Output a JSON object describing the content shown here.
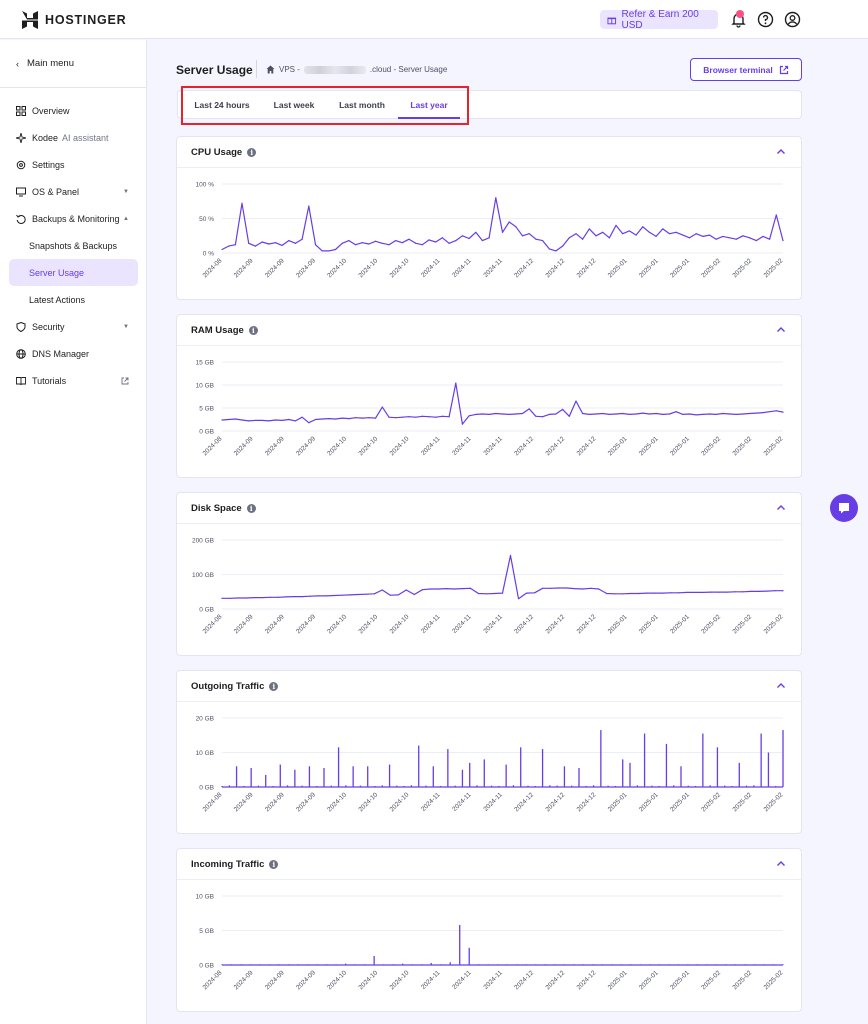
{
  "brand": {
    "name": "HOSTINGER",
    "accent": "#673de6"
  },
  "topbar": {
    "refer_label": "Refer & Earn 200 USD",
    "icons": [
      "gift-icon",
      "bell-icon",
      "help-icon",
      "account-icon"
    ]
  },
  "sidebar": {
    "main_menu": "Main menu",
    "items": [
      {
        "label": "Overview",
        "icon": "grid-icon"
      },
      {
        "label": "Kodee",
        "sub": "AI assistant",
        "icon": "sparkle-icon"
      },
      {
        "label": "Settings",
        "icon": "gear-icon"
      },
      {
        "label": "OS & Panel",
        "icon": "monitor-icon",
        "caret": "down"
      },
      {
        "label": "Backups & Monitoring",
        "icon": "backup-icon",
        "caret": "up"
      },
      {
        "label": "Snapshots & Backups"
      },
      {
        "label": "Server Usage",
        "active": true
      },
      {
        "label": "Latest Actions"
      },
      {
        "label": "Security",
        "icon": "shield-icon",
        "caret": "down"
      },
      {
        "label": "DNS Manager",
        "icon": "globe-icon"
      },
      {
        "label": "Tutorials",
        "icon": "book-icon",
        "external": true
      }
    ]
  },
  "header": {
    "title": "Server Usage",
    "breadcrumb": {
      "vps": "VPS -",
      "suffix": ".cloud - Server Usage"
    },
    "terminal_label": "Browser terminal"
  },
  "tabs": [
    {
      "label": "Last 24 hours"
    },
    {
      "label": "Last week"
    },
    {
      "label": "Last month"
    },
    {
      "label": "Last year",
      "active": true
    }
  ],
  "x_ticks": [
    "2024-08",
    "2024-09",
    "2024-09",
    "2024-09",
    "2024-10",
    "2024-10",
    "2024-10",
    "2024-11",
    "2024-11",
    "2024-11",
    "2024-12",
    "2024-12",
    "2024-12",
    "2025-01",
    "2025-01",
    "2025-01",
    "2025-02",
    "2025-02",
    "2025-02"
  ],
  "chart_data": [
    {
      "type": "line",
      "title": "CPU Usage",
      "y_ticks": [
        "100 %",
        "50 %",
        "0 %"
      ],
      "ylim": [
        0,
        100
      ],
      "series": [
        {
          "values": [
            5,
            10,
            12,
            72,
            14,
            10,
            16,
            13,
            15,
            11,
            18,
            14,
            20,
            68,
            12,
            3,
            3,
            5,
            14,
            18,
            12,
            15,
            13,
            17,
            14,
            12,
            18,
            15,
            20,
            14,
            12,
            19,
            16,
            22,
            14,
            18,
            25,
            21,
            30,
            18,
            22,
            80,
            30,
            45,
            38,
            25,
            28,
            20,
            18,
            6,
            3,
            10,
            22,
            28,
            20,
            35,
            25,
            30,
            22,
            40,
            28,
            32,
            26,
            38,
            30,
            24,
            35,
            28,
            30,
            26,
            22,
            28,
            24,
            26,
            20,
            24,
            22,
            20,
            25,
            22,
            18,
            24,
            20,
            55,
            18
          ]
        }
      ]
    },
    {
      "type": "line",
      "title": "RAM Usage",
      "y_ticks": [
        "15 GB",
        "10 GB",
        "5 GB",
        "0 GB"
      ],
      "ylim": [
        0,
        15
      ],
      "series": [
        {
          "values": [
            2.4,
            2.5,
            2.6,
            2.4,
            2.2,
            2.3,
            2.3,
            2.2,
            2.4,
            2.3,
            2.5,
            2.2,
            3.0,
            1.8,
            2.5,
            2.6,
            2.7,
            2.6,
            2.8,
            2.7,
            2.9,
            2.8,
            2.9,
            2.8,
            5.2,
            3.0,
            2.9,
            3.0,
            3.1,
            3.0,
            3.2,
            3.1,
            3.0,
            3.2,
            3.1,
            10.4,
            1.5,
            3.3,
            3.6,
            3.7,
            3.6,
            3.8,
            3.7,
            3.6,
            3.7,
            3.8,
            4.8,
            3.2,
            3.1,
            3.6,
            3.7,
            4.7,
            3.2,
            6.5,
            3.8,
            3.6,
            3.7,
            3.8,
            3.6,
            3.7,
            3.8,
            3.6,
            3.7,
            3.9,
            3.7,
            3.8,
            3.6,
            3.7,
            4.2,
            3.6,
            3.7,
            3.5,
            3.6,
            3.7,
            3.6,
            3.8,
            3.7,
            3.6,
            3.7,
            3.8,
            3.9,
            4.0,
            4.2,
            4.4,
            4.1
          ]
        }
      ]
    },
    {
      "type": "line",
      "title": "Disk Space",
      "y_ticks": [
        "200 GB",
        "100 GB",
        "0 GB"
      ],
      "ylim": [
        0,
        200
      ],
      "series": [
        {
          "values": [
            31,
            31,
            32,
            32,
            33,
            33,
            34,
            34,
            35,
            36,
            36,
            37,
            38,
            38,
            39,
            40,
            41,
            42,
            43,
            44,
            55,
            40,
            41,
            55,
            42,
            56,
            58,
            58,
            59,
            58,
            59,
            60,
            45,
            44,
            45,
            46,
            155,
            30,
            46,
            47,
            60,
            60,
            61,
            61,
            59,
            58,
            60,
            58,
            45,
            44,
            44,
            45,
            45,
            46,
            46,
            46,
            47,
            47,
            48,
            48,
            48,
            49,
            49,
            49,
            50,
            50,
            51,
            51,
            52,
            53,
            53
          ]
        }
      ]
    },
    {
      "type": "bar",
      "title": "Outgoing Traffic",
      "y_ticks": [
        "20 GB",
        "10 GB",
        "0 GB"
      ],
      "ylim": [
        0,
        20
      ],
      "series": [
        {
          "values": [
            0.3,
            0.5,
            6,
            0.3,
            5.5,
            0.4,
            3.5,
            0.3,
            6.5,
            0.5,
            5,
            0.4,
            6,
            0.3,
            5.5,
            0.4,
            11.5,
            0.5,
            6,
            0.4,
            6,
            0.3,
            0.5,
            6.5,
            0.4,
            0.3,
            0.5,
            12,
            0.4,
            6,
            0.3,
            11,
            0.4,
            5,
            7,
            0.5,
            8,
            0.4,
            0.3,
            6.5,
            0.5,
            11.5,
            0.4,
            0.3,
            11,
            0.5,
            0.4,
            6,
            0.4,
            5.5,
            0.3,
            0.5,
            16.5,
            0.4,
            0.3,
            8,
            7,
            0.5,
            15.5,
            0.4,
            0.3,
            12.5,
            0.5,
            6,
            0.4,
            0.3,
            15.5,
            0.5,
            11.5,
            0.4,
            0.3,
            7,
            0.4,
            0.5,
            15.5,
            10,
            0.3,
            16.5
          ]
        }
      ]
    },
    {
      "type": "bar",
      "title": "Incoming Traffic",
      "y_ticks": [
        "10 GB",
        "5 GB",
        "0 GB"
      ],
      "ylim": [
        0,
        10
      ],
      "series": [
        {
          "values": [
            0.1,
            0.1,
            0.1,
            0.1,
            0.1,
            0.1,
            0.1,
            0.1,
            0.1,
            0.1,
            0.1,
            0.1,
            0.1,
            0.2,
            0.1,
            0.1,
            1.3,
            0.1,
            0.1,
            0.2,
            0.1,
            0.1,
            0.3,
            0.1,
            0.4,
            5.8,
            2.5,
            0.1,
            0.1,
            0.1,
            0.1,
            0.1,
            0.1,
            0.1,
            0.1,
            0.1,
            0.1,
            0.1,
            0.1,
            0.1,
            0.1,
            0.1,
            0.1,
            0.1,
            0.1,
            0.1,
            0.1,
            0.1,
            0.1,
            0.1,
            0.1,
            0.1,
            0.1,
            0.1,
            0.1,
            0.1,
            0.1,
            0.1,
            0.1,
            0.1
          ]
        }
      ]
    }
  ]
}
